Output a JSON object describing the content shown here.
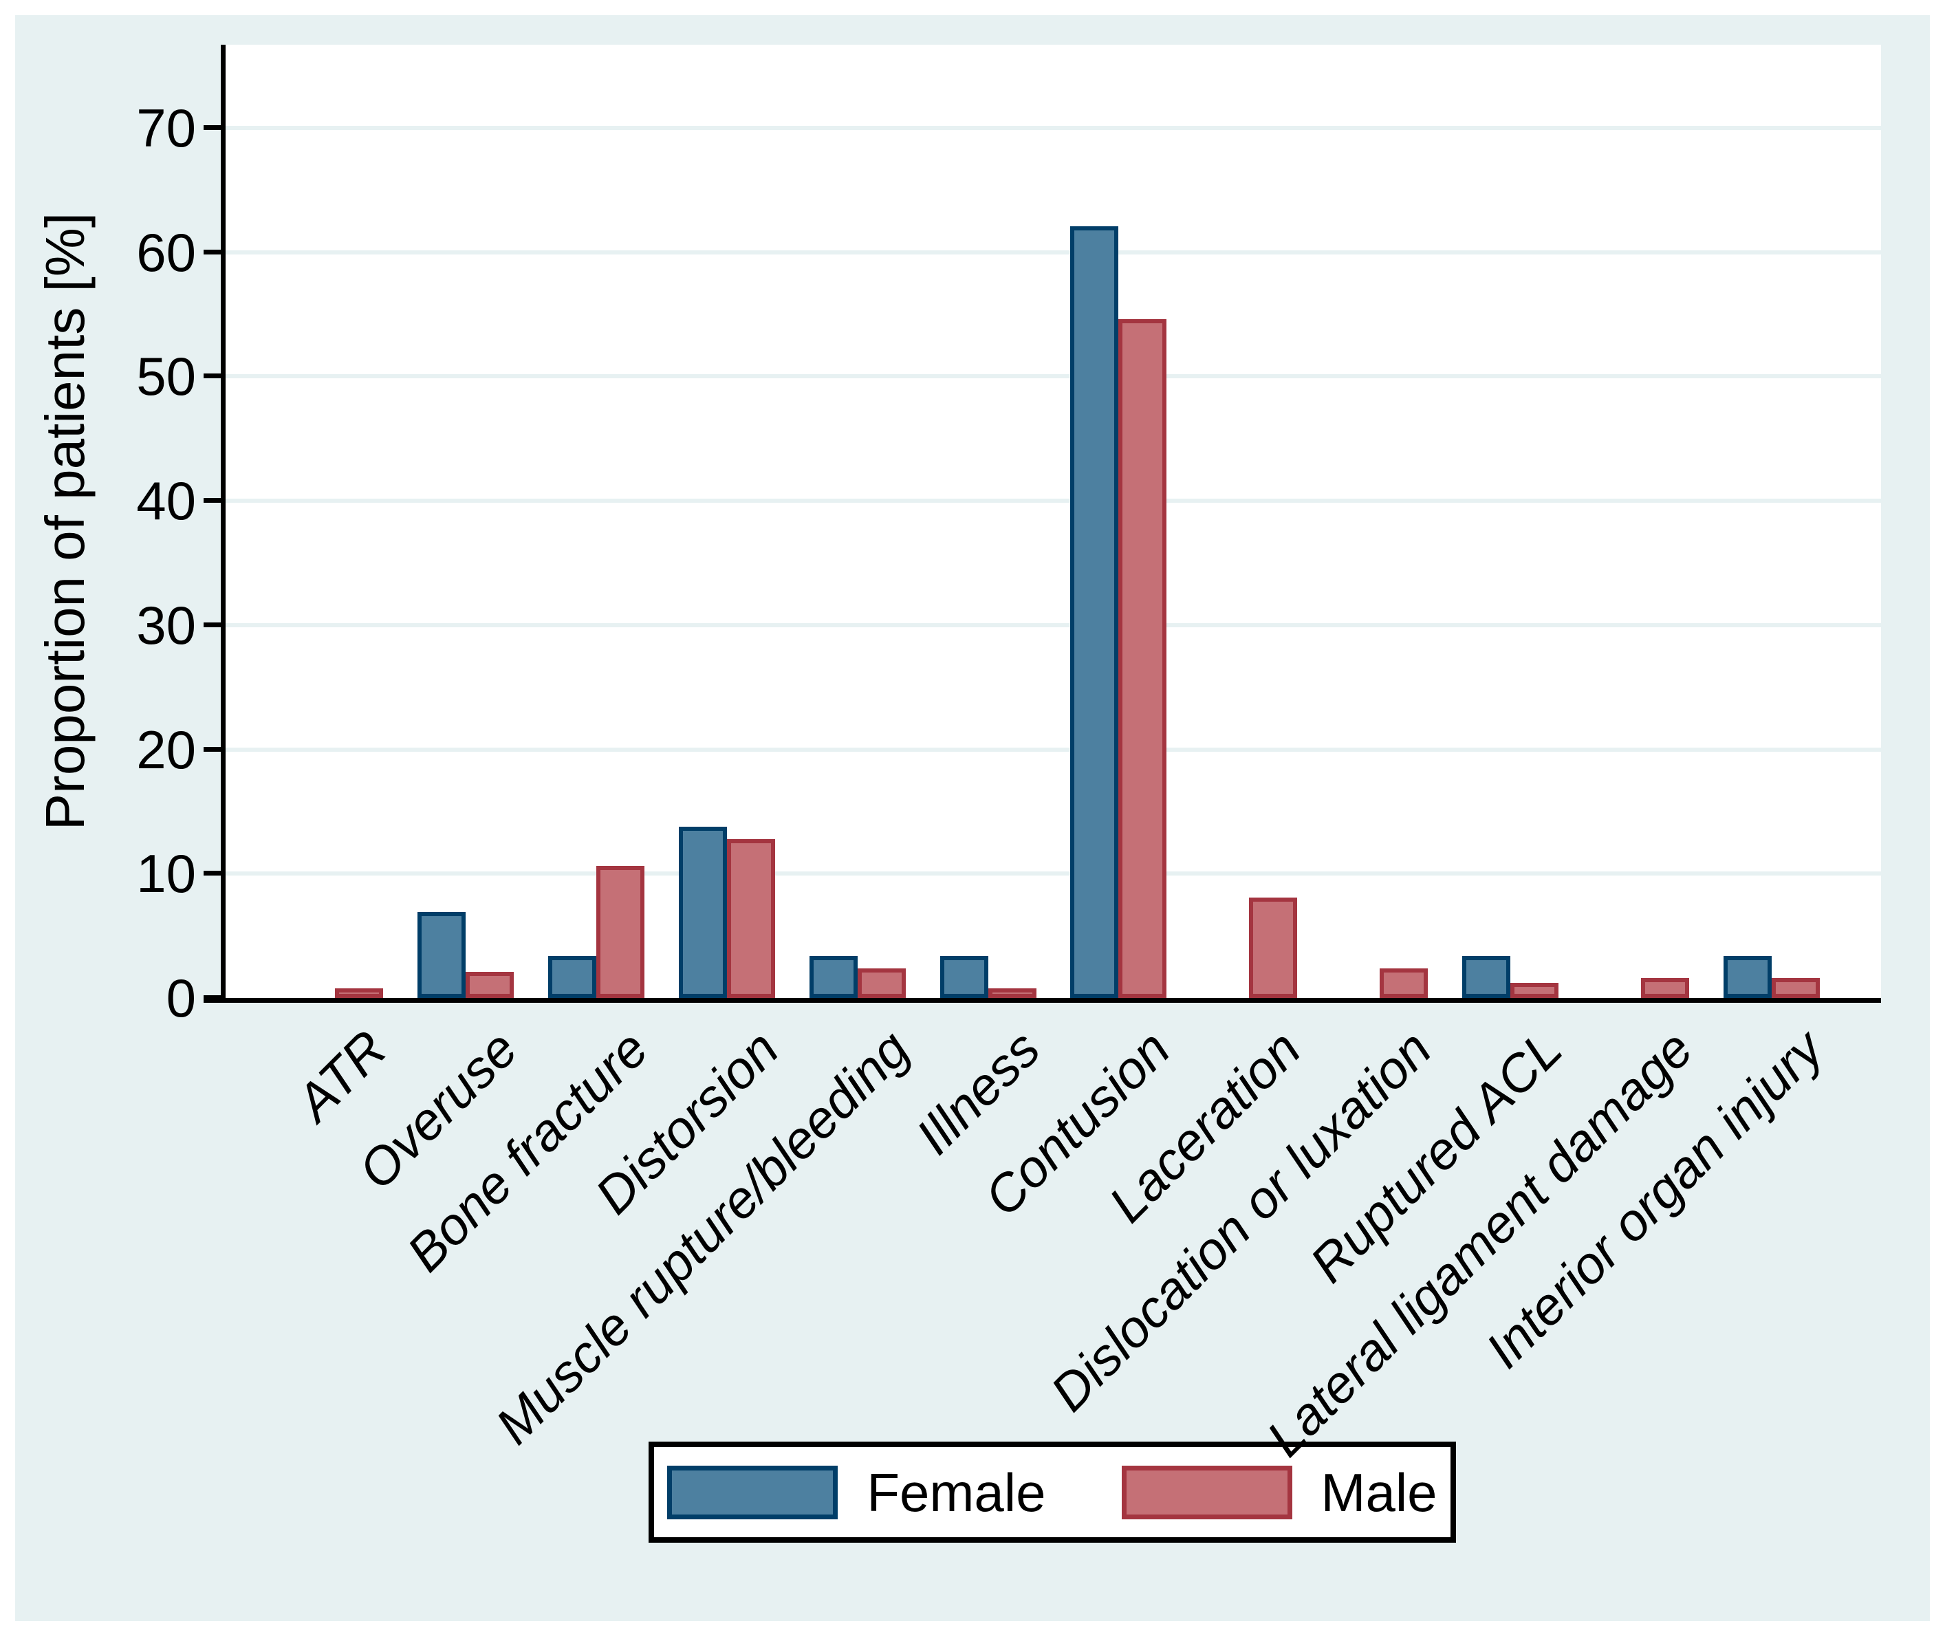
{
  "chart_data": {
    "type": "bar",
    "title": "",
    "ylabel": "Proportion of patients [%]",
    "xlabel": "",
    "ylim": [
      0,
      76.7
    ],
    "yticks": [
      0,
      10,
      20,
      30,
      40,
      50,
      60,
      70
    ],
    "grid": "horizontal",
    "legend_position": "bottom-center",
    "categories": [
      "ATR",
      "Overuse",
      "Bone fracture",
      "Distorsion",
      "Muscle rupture/bleeding",
      "Illness",
      "Contusion",
      "Laceration",
      "Dislocation or luxation",
      "Ruptured ACL",
      "Lateral ligament damage",
      "Interior organ injury"
    ],
    "series": [
      {
        "name": "Female",
        "fill": "#4d80a0",
        "border": "#013e68",
        "values": [
          0,
          6.9,
          3.4,
          13.8,
          3.4,
          3.4,
          62.1,
          0,
          0,
          3.4,
          0,
          3.4
        ]
      },
      {
        "name": "Male",
        "fill": "#c57076",
        "border": "#a43540",
        "values": [
          0.8,
          2.1,
          10.6,
          12.8,
          2.4,
          0.8,
          54.6,
          8.1,
          2.4,
          1.2,
          1.6,
          1.6
        ]
      }
    ]
  },
  "style": {
    "page_bg": "#ffffff",
    "graph_bg": "#e7f1f2",
    "plot_bg": "#ffffff",
    "gridline_color": "#e7f1f2",
    "axis_color": "#000000",
    "text_color": "#000000",
    "legend_bg": "#ffffff",
    "legend_border": "#000000"
  }
}
